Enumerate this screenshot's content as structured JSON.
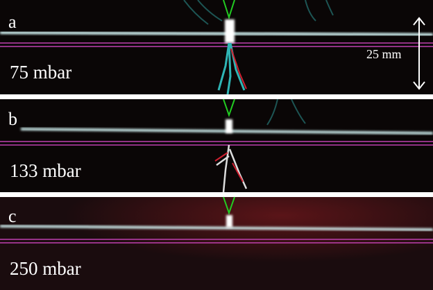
{
  "panels": [
    {
      "letter": "a",
      "pressure": "75 mbar"
    },
    {
      "letter": "b",
      "pressure": "133 mbar"
    },
    {
      "letter": "c",
      "pressure": "250 mbar"
    }
  ],
  "scale_bar": "25 mm"
}
